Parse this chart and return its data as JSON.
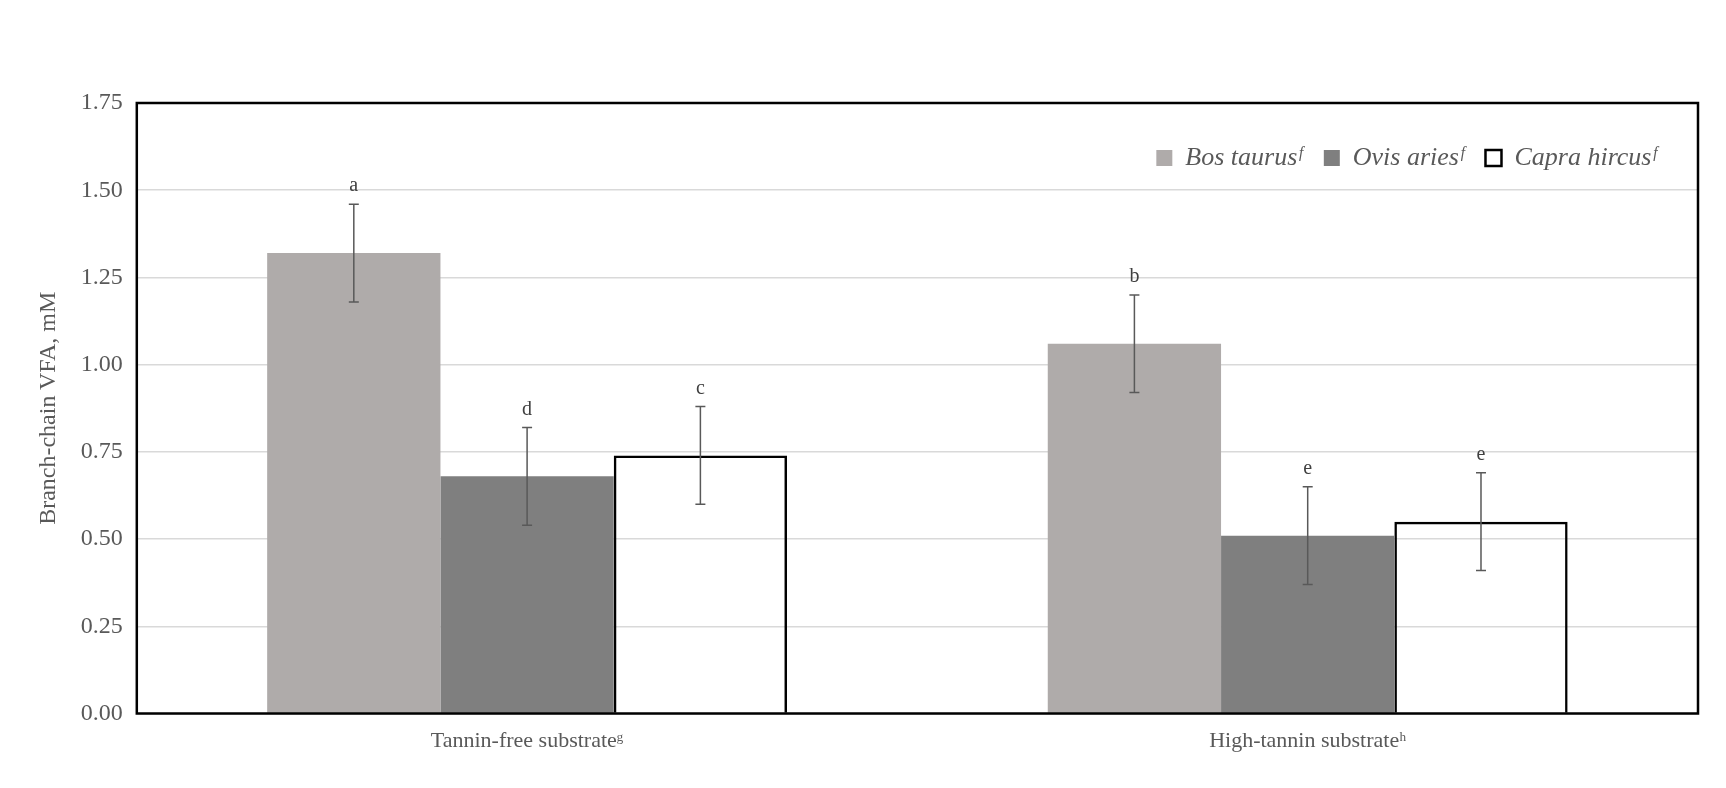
{
  "chart_data": {
    "type": "bar",
    "ylabel": "Branch-chain VFA, mM",
    "categories": [
      "Tannin-free substrateᵍ",
      "High-tannin substrateʰ"
    ],
    "series": [
      {
        "name": "Bos taurusᶠ",
        "color": "#afabaa",
        "values": [
          1.32,
          1.06
        ],
        "errors": [
          0.14,
          0.14
        ],
        "value_labels": [
          "a",
          "b"
        ]
      },
      {
        "name": "Ovis ariesᶠ",
        "color": "#7f7f7f",
        "values": [
          0.68,
          0.51
        ],
        "errors": [
          0.14,
          0.14
        ],
        "value_labels": [
          "d",
          "e"
        ]
      },
      {
        "name": "Capra hircusᶠ",
        "color": "#000000",
        "values": [
          0.74,
          0.55
        ],
        "errors": [
          0.14,
          0.14
        ],
        "value_labels": [
          "c",
          "e"
        ]
      }
    ],
    "ylim": [
      0,
      1.75
    ],
    "yticks": [
      {
        "value": 0,
        "label": "0.00"
      },
      0.25,
      {
        "value": 0.5,
        "label": "0.50"
      },
      0.75,
      {
        "value": 1,
        "label": "1.00"
      },
      1.25,
      {
        "value": 1.5,
        "label": "1.50"
      },
      1.75
    ],
    "grid": "y",
    "legend": "top right"
  }
}
